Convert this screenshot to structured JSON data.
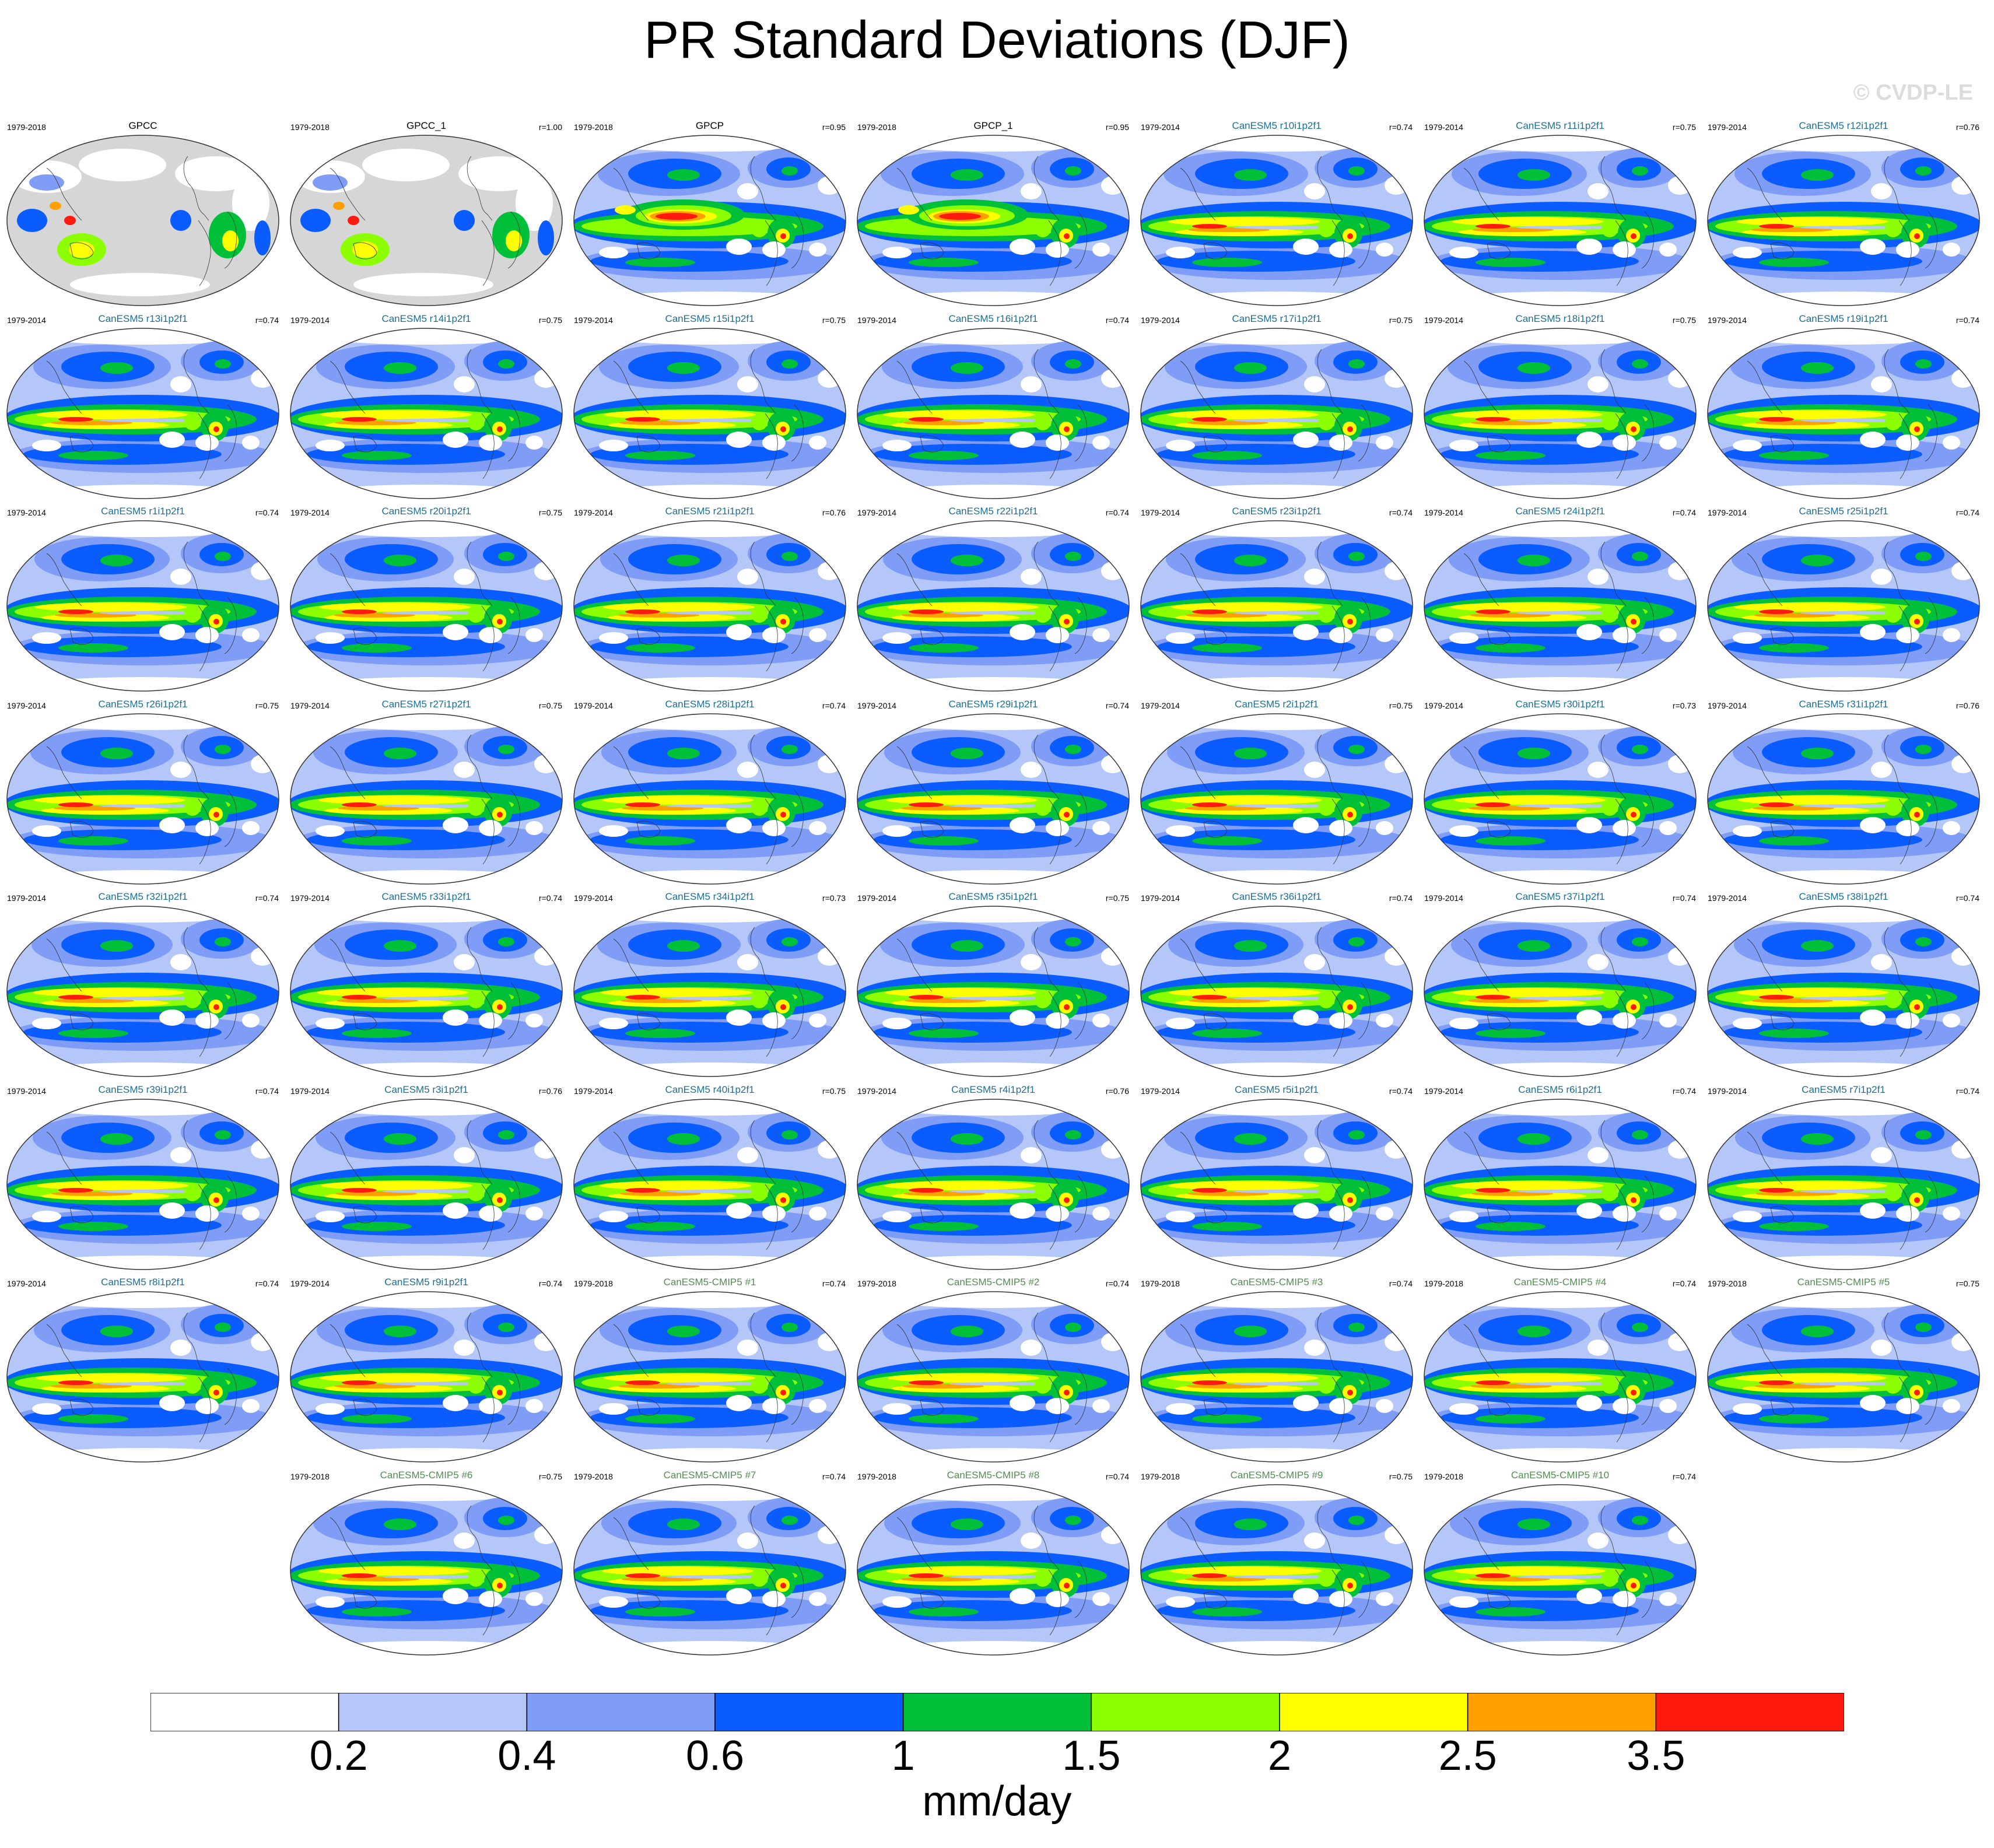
{
  "title": "PR Standard Deviations (DJF)",
  "watermark": "© CVDP-LE",
  "colors": {
    "model_name": "#1c6e95",
    "cmip5_name": "#4f8f4f",
    "obs_name": "#000000",
    "land_mask": "#d6d6d6",
    "levels": [
      "#ffffff",
      "#b4c7f8",
      "#7f9cf6",
      "#0a5cff",
      "#00c03a",
      "#8cff00",
      "#ffff00",
      "#ffa000",
      "#ff1a10"
    ]
  },
  "chart_data": {
    "type": "map-panel-grid",
    "title": "PR Standard Deviations (DJF)",
    "season": "DJF",
    "variable": "PR",
    "units": "mm/day",
    "contour_levels": [
      0.2,
      0.4,
      0.6,
      1,
      1.5,
      2,
      2.5,
      3.5
    ],
    "colorbar_labels": [
      "0.2",
      "0.4",
      "0.6",
      "1",
      "1.5",
      "2",
      "2.5",
      "3.5"
    ],
    "panels": [
      {
        "name": "GPCC",
        "period": "1979-2018",
        "r": "",
        "kind": "obs_land"
      },
      {
        "name": "GPCC_1",
        "period": "1979-2018",
        "r": "r=1.00",
        "kind": "obs_land"
      },
      {
        "name": "GPCP",
        "period": "1979-2018",
        "r": "r=0.95",
        "kind": "obs"
      },
      {
        "name": "GPCP_1",
        "period": "1979-2018",
        "r": "r=0.95",
        "kind": "obs"
      },
      {
        "name": "CanESM5 r10i1p2f1",
        "period": "1979-2014",
        "r": "r=0.74",
        "kind": "model"
      },
      {
        "name": "CanESM5 r11i1p2f1",
        "period": "1979-2014",
        "r": "r=0.75",
        "kind": "model"
      },
      {
        "name": "CanESM5 r12i1p2f1",
        "period": "1979-2014",
        "r": "r=0.76",
        "kind": "model"
      },
      {
        "name": "CanESM5 r13i1p2f1",
        "period": "1979-2014",
        "r": "r=0.74",
        "kind": "model"
      },
      {
        "name": "CanESM5 r14i1p2f1",
        "period": "1979-2014",
        "r": "r=0.75",
        "kind": "model"
      },
      {
        "name": "CanESM5 r15i1p2f1",
        "period": "1979-2014",
        "r": "r=0.75",
        "kind": "model"
      },
      {
        "name": "CanESM5 r16i1p2f1",
        "period": "1979-2014",
        "r": "r=0.74",
        "kind": "model"
      },
      {
        "name": "CanESM5 r17i1p2f1",
        "period": "1979-2014",
        "r": "r=0.75",
        "kind": "model"
      },
      {
        "name": "CanESM5 r18i1p2f1",
        "period": "1979-2014",
        "r": "r=0.75",
        "kind": "model"
      },
      {
        "name": "CanESM5 r19i1p2f1",
        "period": "1979-2014",
        "r": "r=0.74",
        "kind": "model"
      },
      {
        "name": "CanESM5 r1i1p2f1",
        "period": "1979-2014",
        "r": "r=0.74",
        "kind": "model"
      },
      {
        "name": "CanESM5 r20i1p2f1",
        "period": "1979-2014",
        "r": "r=0.75",
        "kind": "model"
      },
      {
        "name": "CanESM5 r21i1p2f1",
        "period": "1979-2014",
        "r": "r=0.76",
        "kind": "model"
      },
      {
        "name": "CanESM5 r22i1p2f1",
        "period": "1979-2014",
        "r": "r=0.74",
        "kind": "model"
      },
      {
        "name": "CanESM5 r23i1p2f1",
        "period": "1979-2014",
        "r": "r=0.74",
        "kind": "model"
      },
      {
        "name": "CanESM5 r24i1p2f1",
        "period": "1979-2014",
        "r": "r=0.74",
        "kind": "model"
      },
      {
        "name": "CanESM5 r25i1p2f1",
        "period": "1979-2014",
        "r": "r=0.74",
        "kind": "model"
      },
      {
        "name": "CanESM5 r26i1p2f1",
        "period": "1979-2014",
        "r": "r=0.75",
        "kind": "model"
      },
      {
        "name": "CanESM5 r27i1p2f1",
        "period": "1979-2014",
        "r": "r=0.75",
        "kind": "model"
      },
      {
        "name": "CanESM5 r28i1p2f1",
        "period": "1979-2014",
        "r": "r=0.74",
        "kind": "model"
      },
      {
        "name": "CanESM5 r29i1p2f1",
        "period": "1979-2014",
        "r": "r=0.74",
        "kind": "model"
      },
      {
        "name": "CanESM5 r2i1p2f1",
        "period": "1979-2014",
        "r": "r=0.75",
        "kind": "model"
      },
      {
        "name": "CanESM5 r30i1p2f1",
        "period": "1979-2014",
        "r": "r=0.73",
        "kind": "model"
      },
      {
        "name": "CanESM5 r31i1p2f1",
        "period": "1979-2014",
        "r": "r=0.76",
        "kind": "model"
      },
      {
        "name": "CanESM5 r32i1p2f1",
        "period": "1979-2014",
        "r": "r=0.74",
        "kind": "model"
      },
      {
        "name": "CanESM5 r33i1p2f1",
        "period": "1979-2014",
        "r": "r=0.74",
        "kind": "model"
      },
      {
        "name": "CanESM5 r34i1p2f1",
        "period": "1979-2014",
        "r": "r=0.73",
        "kind": "model"
      },
      {
        "name": "CanESM5 r35i1p2f1",
        "period": "1979-2014",
        "r": "r=0.75",
        "kind": "model"
      },
      {
        "name": "CanESM5 r36i1p2f1",
        "period": "1979-2014",
        "r": "r=0.74",
        "kind": "model"
      },
      {
        "name": "CanESM5 r37i1p2f1",
        "period": "1979-2014",
        "r": "r=0.74",
        "kind": "model"
      },
      {
        "name": "CanESM5 r38i1p2f1",
        "period": "1979-2014",
        "r": "r=0.74",
        "kind": "model"
      },
      {
        "name": "CanESM5 r39i1p2f1",
        "period": "1979-2014",
        "r": "r=0.74",
        "kind": "model"
      },
      {
        "name": "CanESM5 r3i1p2f1",
        "period": "1979-2014",
        "r": "r=0.76",
        "kind": "model"
      },
      {
        "name": "CanESM5 r40i1p2f1",
        "period": "1979-2014",
        "r": "r=0.75",
        "kind": "model"
      },
      {
        "name": "CanESM5 r4i1p2f1",
        "period": "1979-2014",
        "r": "r=0.76",
        "kind": "model"
      },
      {
        "name": "CanESM5 r5i1p2f1",
        "period": "1979-2014",
        "r": "r=0.74",
        "kind": "model"
      },
      {
        "name": "CanESM5 r6i1p2f1",
        "period": "1979-2014",
        "r": "r=0.74",
        "kind": "model"
      },
      {
        "name": "CanESM5 r7i1p2f1",
        "period": "1979-2014",
        "r": "r=0.74",
        "kind": "model"
      },
      {
        "name": "CanESM5 r8i1p2f1",
        "period": "1979-2014",
        "r": "r=0.74",
        "kind": "model"
      },
      {
        "name": "CanESM5 r9i1p2f1",
        "period": "1979-2014",
        "r": "r=0.74",
        "kind": "model"
      },
      {
        "name": "CanESM5-CMIP5 #1",
        "period": "1979-2018",
        "r": "r=0.74",
        "kind": "cmip5"
      },
      {
        "name": "CanESM5-CMIP5 #2",
        "period": "1979-2018",
        "r": "r=0.74",
        "kind": "cmip5"
      },
      {
        "name": "CanESM5-CMIP5 #3",
        "period": "1979-2018",
        "r": "r=0.74",
        "kind": "cmip5"
      },
      {
        "name": "CanESM5-CMIP5 #4",
        "period": "1979-2018",
        "r": "r=0.74",
        "kind": "cmip5"
      },
      {
        "name": "CanESM5-CMIP5 #5",
        "period": "1979-2018",
        "r": "r=0.75",
        "kind": "cmip5"
      },
      {
        "name": "CanESM5-CMIP5 #6",
        "period": "1979-2018",
        "r": "r=0.75",
        "kind": "cmip5"
      },
      {
        "name": "CanESM5-CMIP5 #7",
        "period": "1979-2018",
        "r": "r=0.74",
        "kind": "cmip5"
      },
      {
        "name": "CanESM5-CMIP5 #8",
        "period": "1979-2018",
        "r": "r=0.74",
        "kind": "cmip5"
      },
      {
        "name": "CanESM5-CMIP5 #9",
        "period": "1979-2018",
        "r": "r=0.75",
        "kind": "cmip5"
      },
      {
        "name": "CanESM5-CMIP5 #10",
        "period": "1979-2018",
        "r": "r=0.74",
        "kind": "cmip5"
      }
    ]
  }
}
